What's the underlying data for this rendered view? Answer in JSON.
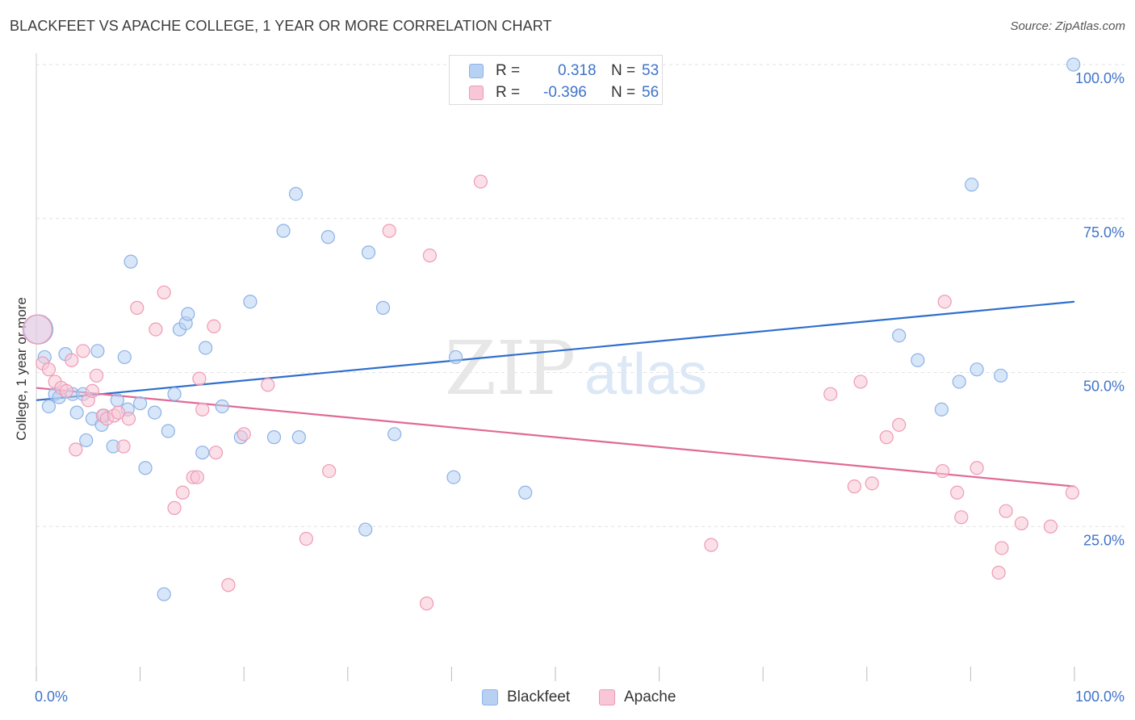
{
  "title": "BLACKFEET VS APACHE COLLEGE, 1 YEAR OR MORE CORRELATION CHART",
  "source": "Source: ZipAtlas.com",
  "legend": {
    "r_label": "R =",
    "n_label": "N =",
    "blackfeet": {
      "r": "0.318",
      "n": "53"
    },
    "apache": {
      "r": "-0.396",
      "n": "56"
    }
  },
  "colors": {
    "blackfeet_fill": "#b7d1f3",
    "blackfeet_stroke": "#8db2e6",
    "blackfeet_line": "#2f6fcc",
    "apache_fill": "#f8c6d6",
    "apache_stroke": "#ee9ab6",
    "apache_line": "#e06a96",
    "tick_text": "#3f74c9"
  },
  "chart_data": {
    "type": "scatter",
    "title": "BLACKFEET VS APACHE COLLEGE, 1 YEAR OR MORE CORRELATION CHART",
    "xlabel": "",
    "ylabel": "College, 1 year or more",
    "xlim": [
      0,
      100
    ],
    "ylim": [
      0,
      100
    ],
    "x_tick_labels": [
      "0.0%",
      "100.0%"
    ],
    "y_tick_labels": [
      "25.0%",
      "50.0%",
      "75.0%",
      "100.0%"
    ],
    "y_ticks": [
      25,
      50,
      75,
      100
    ],
    "grid": true,
    "watermark": {
      "zip": "ZIP",
      "atlas": "atlas"
    },
    "series": [
      {
        "name": "Blackfeet",
        "trend": {
          "x": [
            0,
            100
          ],
          "y": [
            45.5,
            61.5
          ]
        },
        "points": [
          {
            "x": 0.8,
            "y": 52.5
          },
          {
            "x": 1.2,
            "y": 44.5
          },
          {
            "x": 1.8,
            "y": 46.5
          },
          {
            "x": 2.2,
            "y": 46.0
          },
          {
            "x": 2.8,
            "y": 53.0
          },
          {
            "x": 3.5,
            "y": 46.5
          },
          {
            "x": 3.9,
            "y": 43.5
          },
          {
            "x": 4.8,
            "y": 39.0
          },
          {
            "x": 4.5,
            "y": 46.5
          },
          {
            "x": 5.4,
            "y": 42.5
          },
          {
            "x": 5.9,
            "y": 53.5
          },
          {
            "x": 6.3,
            "y": 41.5
          },
          {
            "x": 6.5,
            "y": 43.0
          },
          {
            "x": 7.4,
            "y": 38.0
          },
          {
            "x": 7.8,
            "y": 45.5
          },
          {
            "x": 8.5,
            "y": 52.5
          },
          {
            "x": 8.8,
            "y": 44.0
          },
          {
            "x": 9.1,
            "y": 68.0
          },
          {
            "x": 10.0,
            "y": 45.0
          },
          {
            "x": 10.5,
            "y": 34.5
          },
          {
            "x": 11.4,
            "y": 43.5
          },
          {
            "x": 12.3,
            "y": 14.0
          },
          {
            "x": 12.7,
            "y": 40.5
          },
          {
            "x": 13.3,
            "y": 46.5
          },
          {
            "x": 13.8,
            "y": 57.0
          },
          {
            "x": 14.4,
            "y": 58.0
          },
          {
            "x": 14.6,
            "y": 59.5
          },
          {
            "x": 16.3,
            "y": 54.0
          },
          {
            "x": 16.0,
            "y": 37.0
          },
          {
            "x": 17.9,
            "y": 44.5
          },
          {
            "x": 20.6,
            "y": 61.5
          },
          {
            "x": 19.7,
            "y": 39.5
          },
          {
            "x": 22.9,
            "y": 39.5
          },
          {
            "x": 23.8,
            "y": 73.0
          },
          {
            "x": 25.0,
            "y": 79.0
          },
          {
            "x": 25.3,
            "y": 39.5
          },
          {
            "x": 28.1,
            "y": 72.0
          },
          {
            "x": 31.7,
            "y": 24.5
          },
          {
            "x": 32.0,
            "y": 69.5
          },
          {
            "x": 33.4,
            "y": 60.5
          },
          {
            "x": 34.5,
            "y": 40.0
          },
          {
            "x": 40.4,
            "y": 52.5
          },
          {
            "x": 40.2,
            "y": 33.0
          },
          {
            "x": 47.1,
            "y": 30.5
          },
          {
            "x": 83.1,
            "y": 56.0
          },
          {
            "x": 84.9,
            "y": 52.0
          },
          {
            "x": 87.2,
            "y": 44.0
          },
          {
            "x": 88.9,
            "y": 48.5
          },
          {
            "x": 90.1,
            "y": 80.5
          },
          {
            "x": 90.6,
            "y": 50.5
          },
          {
            "x": 92.9,
            "y": 49.5
          },
          {
            "x": 99.9,
            "y": 100.0
          },
          {
            "x": 0.2,
            "y": 57.0
          }
        ]
      },
      {
        "name": "Apache",
        "trend": {
          "x": [
            0,
            100
          ],
          "y": [
            47.5,
            31.5
          ]
        },
        "points": [
          {
            "x": 0.6,
            "y": 51.5
          },
          {
            "x": 1.2,
            "y": 50.5
          },
          {
            "x": 1.8,
            "y": 48.5
          },
          {
            "x": 2.4,
            "y": 47.5
          },
          {
            "x": 2.9,
            "y": 47.0
          },
          {
            "x": 3.4,
            "y": 52.0
          },
          {
            "x": 3.8,
            "y": 37.5
          },
          {
            "x": 4.5,
            "y": 53.5
          },
          {
            "x": 5.0,
            "y": 45.5
          },
          {
            "x": 5.4,
            "y": 47.0
          },
          {
            "x": 5.8,
            "y": 49.5
          },
          {
            "x": 6.4,
            "y": 43.0
          },
          {
            "x": 6.8,
            "y": 42.5
          },
          {
            "x": 7.5,
            "y": 43.0
          },
          {
            "x": 7.9,
            "y": 43.5
          },
          {
            "x": 8.4,
            "y": 38.0
          },
          {
            "x": 8.9,
            "y": 42.5
          },
          {
            "x": 9.7,
            "y": 60.5
          },
          {
            "x": 11.5,
            "y": 57.0
          },
          {
            "x": 12.3,
            "y": 63.0
          },
          {
            "x": 13.3,
            "y": 28.0
          },
          {
            "x": 14.1,
            "y": 30.5
          },
          {
            "x": 15.1,
            "y": 33.0
          },
          {
            "x": 15.5,
            "y": 33.0
          },
          {
            "x": 16.0,
            "y": 44.0
          },
          {
            "x": 15.7,
            "y": 49.0
          },
          {
            "x": 17.1,
            "y": 57.5
          },
          {
            "x": 17.3,
            "y": 37.0
          },
          {
            "x": 18.5,
            "y": 15.5
          },
          {
            "x": 20.0,
            "y": 40.0
          },
          {
            "x": 22.3,
            "y": 48.0
          },
          {
            "x": 26.0,
            "y": 23.0
          },
          {
            "x": 28.2,
            "y": 34.0
          },
          {
            "x": 34.0,
            "y": 73.0
          },
          {
            "x": 37.6,
            "y": 12.5
          },
          {
            "x": 37.9,
            "y": 69.0
          },
          {
            "x": 42.8,
            "y": 81.0
          },
          {
            "x": 65.0,
            "y": 22.0
          },
          {
            "x": 76.5,
            "y": 46.5
          },
          {
            "x": 78.8,
            "y": 31.5
          },
          {
            "x": 79.4,
            "y": 48.5
          },
          {
            "x": 80.5,
            "y": 32.0
          },
          {
            "x": 81.9,
            "y": 39.5
          },
          {
            "x": 83.1,
            "y": 41.5
          },
          {
            "x": 87.3,
            "y": 34.0
          },
          {
            "x": 87.5,
            "y": 61.5
          },
          {
            "x": 88.7,
            "y": 30.5
          },
          {
            "x": 89.1,
            "y": 26.5
          },
          {
            "x": 90.6,
            "y": 34.5
          },
          {
            "x": 92.7,
            "y": 17.5
          },
          {
            "x": 93.0,
            "y": 21.5
          },
          {
            "x": 93.4,
            "y": 27.5
          },
          {
            "x": 94.9,
            "y": 25.5
          },
          {
            "x": 97.7,
            "y": 25.0
          },
          {
            "x": 99.8,
            "y": 30.5
          },
          {
            "x": 0.1,
            "y": 57.0
          }
        ]
      }
    ]
  }
}
